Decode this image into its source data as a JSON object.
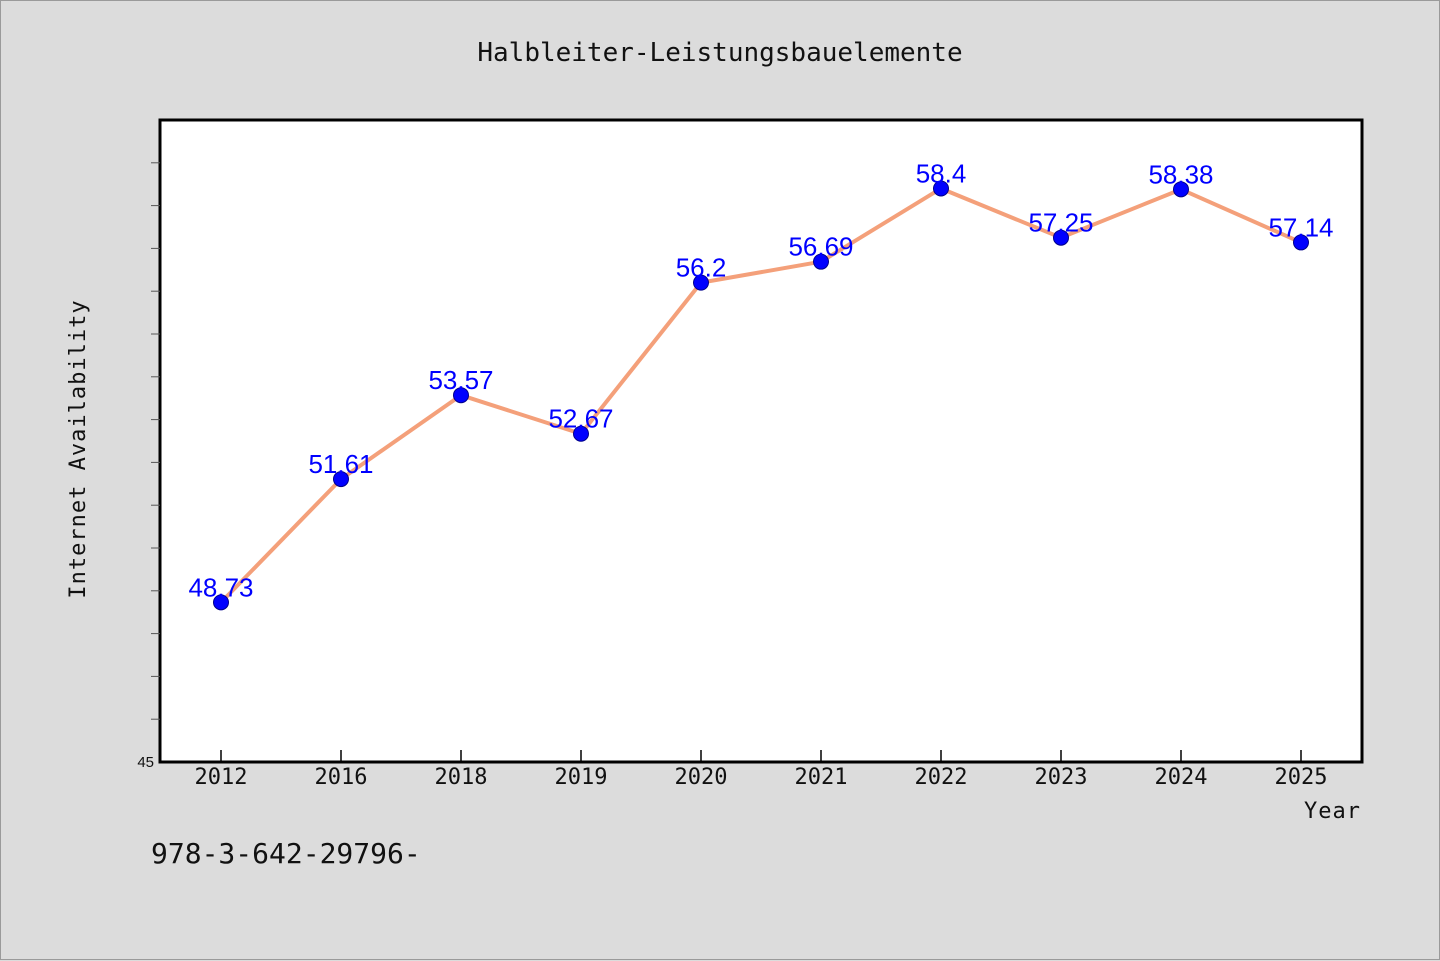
{
  "chart_data": {
    "type": "line",
    "title": "Halbleiter-Leistungsbauelemente",
    "xlabel": "Year",
    "ylabel": "Internet Availability",
    "categories": [
      "2012",
      "2016",
      "2018",
      "2019",
      "2020",
      "2021",
      "2022",
      "2023",
      "2024",
      "2025"
    ],
    "series": [
      {
        "values": [
          48.73,
          51.61,
          53.57,
          52.67,
          56.2,
          56.69,
          58.4,
          57.25,
          58.38,
          57.14
        ],
        "labels": [
          "48.73",
          "51.61",
          "53.57",
          "52.67",
          "56.2",
          "56.69",
          "58.4",
          "57.25",
          "58.38",
          "57.14"
        ]
      }
    ],
    "ylim": [
      45,
      60
    ],
    "ytick_label": "45",
    "ytick_step": 1,
    "grid": false,
    "line_color": "#f4a07a",
    "marker_color": "#0000ff",
    "label_color": "#0000ff"
  },
  "footer_text": "978-3-642-29796-"
}
